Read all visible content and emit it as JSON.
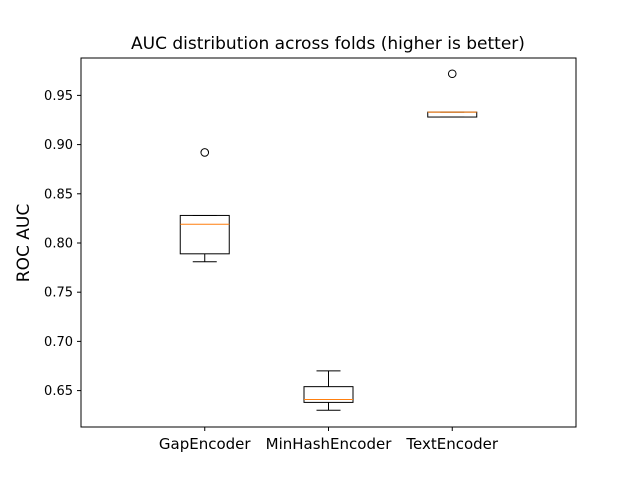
{
  "chart_data": {
    "type": "box",
    "title": "AUC distribution across folds (higher is better)",
    "xlabel": "",
    "ylabel": "ROC AUC",
    "ylim": [
      0.613,
      0.988
    ],
    "yticks": [
      0.65,
      0.7,
      0.75,
      0.8,
      0.85,
      0.9,
      0.95
    ],
    "ytick_labels": [
      "0.65",
      "0.70",
      "0.75",
      "0.80",
      "0.85",
      "0.90",
      "0.95"
    ],
    "grid": false,
    "categories": [
      "GapEncoder",
      "MinHashEncoder",
      "TextEncoder"
    ],
    "boxes": [
      {
        "category": "GapEncoder",
        "whisker_low": 0.781,
        "q1": 0.789,
        "median": 0.819,
        "q3": 0.828,
        "whisker_high": 0.828,
        "outliers": [
          0.892
        ]
      },
      {
        "category": "MinHashEncoder",
        "whisker_low": 0.63,
        "q1": 0.638,
        "median": 0.641,
        "q3": 0.654,
        "whisker_high": 0.67,
        "outliers": []
      },
      {
        "category": "TextEncoder",
        "whisker_low": 0.928,
        "q1": 0.928,
        "median": 0.933,
        "q3": 0.933,
        "whisker_high": 0.933,
        "outliers": [
          0.972
        ]
      }
    ],
    "colors": {
      "box": "#000000",
      "median": "#ff7f0e",
      "outlier": "#000000"
    }
  }
}
